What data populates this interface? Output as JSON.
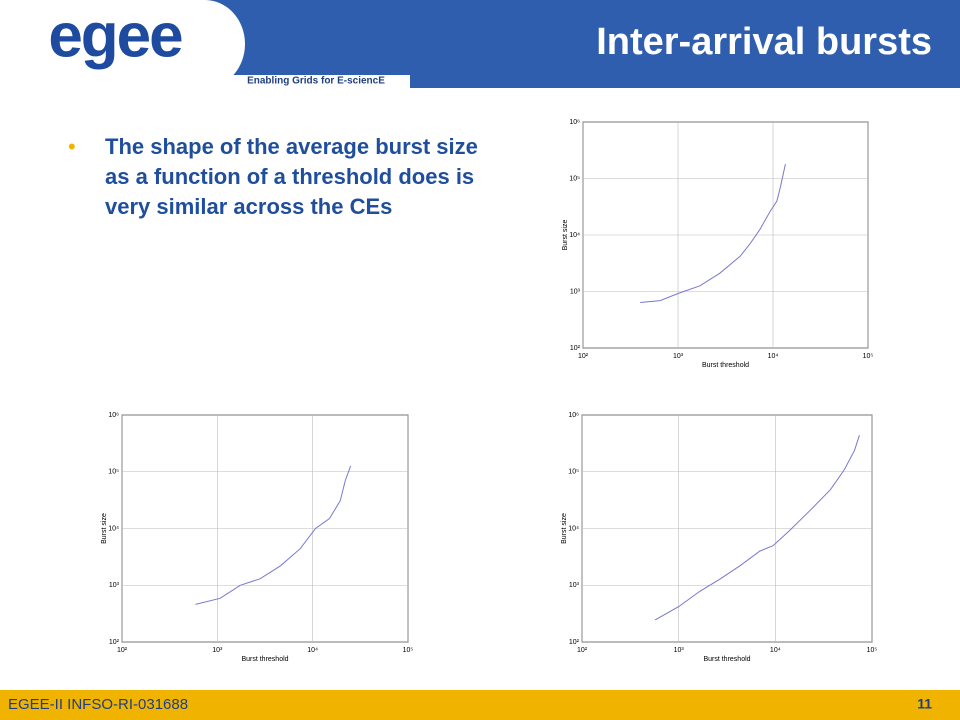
{
  "header": {
    "logo": "egee",
    "tagline": "Enabling Grids for E-sciencE",
    "title": "Inter-arrival bursts"
  },
  "bullet": "The shape of the average burst size as a function of a threshold does is very similar across the CEs",
  "footer": {
    "left": "EGEE-II INFSO-RI-031688",
    "page": "11"
  },
  "chart_data": [
    {
      "type": "line",
      "xlabel": "Burst threshold",
      "ylabel": "Burst size",
      "xscale": "log",
      "yscale": "log",
      "grid": true,
      "color": "#7878d0",
      "xlim": [
        100,
        100000
      ],
      "ylim": [
        100,
        1000000
      ],
      "xticks": [
        {
          "value": 100,
          "label": "10²"
        },
        {
          "value": 1000,
          "label": "10³"
        },
        {
          "value": 10000,
          "label": "10⁴"
        },
        {
          "value": 100000,
          "label": "10⁵"
        }
      ],
      "yticks": [
        {
          "value": 100,
          "label": "10²"
        },
        {
          "value": 1000,
          "label": "10³"
        },
        {
          "value": 10000,
          "label": "10⁴"
        },
        {
          "value": 100000,
          "label": "10⁵"
        },
        {
          "value": 1000000,
          "label": "10⁶"
        }
      ],
      "x": [
        400,
        650,
        1000,
        1700,
        2750,
        4500,
        5700,
        7300,
        9300,
        11000,
        12000,
        13500
      ],
      "values": [
        640,
        690,
        920,
        1260,
        2100,
        4200,
        6900,
        12600,
        26000,
        40000,
        72000,
        180000
      ]
    },
    {
      "type": "line",
      "xlabel": "Burst threshold",
      "ylabel": "Burst size",
      "xscale": "log",
      "yscale": "log",
      "grid": true,
      "color": "#7878d0",
      "xlim": [
        100,
        100000
      ],
      "ylim": [
        100,
        1000000
      ],
      "xticks": [
        {
          "value": 100,
          "label": "10²"
        },
        {
          "value": 1000,
          "label": "10³"
        },
        {
          "value": 10000,
          "label": "10⁴"
        },
        {
          "value": 100000,
          "label": "10⁵"
        }
      ],
      "yticks": [
        {
          "value": 100,
          "label": "10²"
        },
        {
          "value": 1000,
          "label": "10³"
        },
        {
          "value": 10000,
          "label": "10⁴"
        },
        {
          "value": 100000,
          "label": "10⁵"
        },
        {
          "value": 1000000,
          "label": "10⁶"
        }
      ],
      "x": [
        590,
        1070,
        1740,
        2800,
        4600,
        7400,
        10700,
        15000,
        19500,
        22000,
        25000
      ],
      "values": [
        460,
        590,
        1000,
        1300,
        2200,
        4400,
        10000,
        15000,
        31000,
        70000,
        126000
      ]
    },
    {
      "type": "line",
      "xlabel": "Burst threshold",
      "ylabel": "Burst size",
      "xscale": "log",
      "yscale": "log",
      "grid": true,
      "color": "#7878d0",
      "xlim": [
        100,
        100000
      ],
      "ylim": [
        100,
        1000000
      ],
      "xticks": [
        {
          "value": 100,
          "label": "10²"
        },
        {
          "value": 1000,
          "label": "10³"
        },
        {
          "value": 10000,
          "label": "10⁴"
        },
        {
          "value": 100000,
          "label": "10⁵"
        }
      ],
      "yticks": [
        {
          "value": 100,
          "label": "10²"
        },
        {
          "value": 1000,
          "label": "10³"
        },
        {
          "value": 10000,
          "label": "10⁴"
        },
        {
          "value": 100000,
          "label": "10⁵"
        },
        {
          "value": 1000000,
          "label": "10⁶"
        }
      ],
      "x": [
        570,
        1000,
        1650,
        2700,
        4300,
        6900,
        9500,
        14000,
        23000,
        37000,
        52000,
        66000,
        74000
      ],
      "values": [
        245,
        420,
        780,
        1300,
        2200,
        4000,
        5000,
        9200,
        21000,
        48000,
        110000,
        240000,
        440000
      ]
    }
  ]
}
